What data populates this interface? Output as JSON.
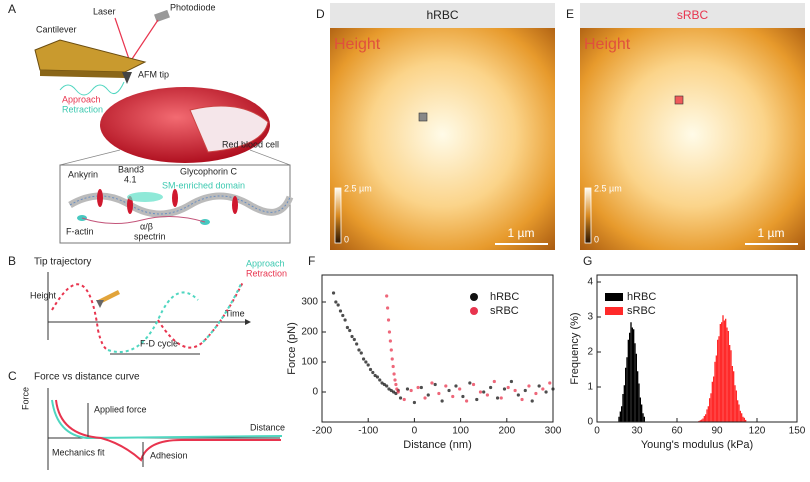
{
  "diagram": {
    "a": {
      "label": "A",
      "laser": "Laser",
      "photodiode": "Photodiode",
      "cantilever": "Cantilever",
      "tip": "AFM tip",
      "approach": "Approach",
      "retraction": "Retraction",
      "cell": "Red blood cell",
      "ankyrin": "Ankyrin",
      "band3": "Band3",
      "p41": "4.1",
      "glycophorin": "Glycophorin C",
      "sm_domain": "SM-enriched domain",
      "factin": "F-actin",
      "ab": "α/β",
      "spectrin": "spectrin"
    },
    "b": {
      "label": "B",
      "title": "Tip trajectory",
      "y": "Height",
      "x": "Time",
      "approach": "Approach",
      "retraction": "Retraction",
      "cycle": "F-D cycle"
    },
    "c": {
      "label": "C",
      "title": "Force vs distance curve",
      "y": "Force",
      "x": "Distance",
      "applied": "Applied force",
      "fit": "Mechanics fit",
      "adhesion": "Adhesion"
    }
  },
  "images": [
    {
      "label": "D",
      "title": "hRBC",
      "channel": "Height",
      "scale_max": "2.5 µm",
      "scale_min": "0",
      "scalebar": "1 µm"
    },
    {
      "label": "E",
      "title": "sRBC",
      "channel": "Height",
      "scale_max": "2.5 µm",
      "scale_min": "0",
      "scalebar": "1 µm"
    }
  ],
  "chart_data": [
    {
      "type": "scatter",
      "panel_label": "F",
      "xlabel": "Distance (nm)",
      "ylabel": "Force (pN)",
      "xlim": [
        -200,
        300
      ],
      "ylim": [
        -100,
        390
      ],
      "xticks": [
        -200,
        -100,
        0,
        100,
        200,
        300
      ],
      "yticks": [
        0,
        100,
        200,
        300
      ],
      "legend": "upper right",
      "series": [
        {
          "name": "hRBC",
          "color": "#111111",
          "x": [
            -175,
            -170,
            -165,
            -160,
            -155,
            -150,
            -145,
            -140,
            -135,
            -130,
            -125,
            -120,
            -115,
            -110,
            -105,
            -100,
            -95,
            -90,
            -85,
            -80,
            -75,
            -70,
            -65,
            -60,
            -55,
            -50,
            -45,
            -40,
            -35,
            -30,
            -15,
            0,
            15,
            30,
            45,
            60,
            75,
            90,
            105,
            120,
            135,
            150,
            165,
            180,
            195,
            210,
            225,
            240,
            255,
            270,
            285,
            300
          ],
          "values": [
            330,
            300,
            290,
            270,
            255,
            240,
            215,
            205,
            185,
            175,
            160,
            140,
            130,
            110,
            100,
            90,
            75,
            65,
            55,
            50,
            40,
            30,
            25,
            20,
            10,
            5,
            0,
            -5,
            5,
            -20,
            10,
            -35,
            15,
            -10,
            25,
            -30,
            5,
            20,
            -15,
            30,
            -25,
            0,
            15,
            -20,
            10,
            35,
            -10,
            5,
            -30,
            20,
            0,
            10
          ]
        },
        {
          "name": "sRBC",
          "color": "#e8344e",
          "x": [
            -60,
            -58,
            -56,
            -54,
            -52,
            -50,
            -48,
            -46,
            -44,
            -42,
            -40,
            -38,
            -35,
            -22,
            -7,
            8,
            23,
            38,
            53,
            68,
            83,
            98,
            113,
            128,
            143,
            158,
            173,
            188,
            203,
            218,
            233,
            248,
            263,
            278,
            293
          ],
          "values": [
            320,
            280,
            240,
            200,
            170,
            140,
            110,
            85,
            60,
            40,
            25,
            10,
            0,
            -25,
            5,
            15,
            -20,
            30,
            -5,
            20,
            -15,
            10,
            -30,
            25,
            0,
            -10,
            35,
            -20,
            15,
            5,
            -25,
            20,
            -5,
            10,
            30
          ]
        }
      ]
    },
    {
      "type": "histogram",
      "panel_label": "G",
      "xlabel": "Young's modulus (kPa)",
      "ylabel": "Frequency (%)",
      "xlim": [
        0,
        150
      ],
      "ylim": [
        0,
        4.2
      ],
      "xticks": [
        0,
        30,
        60,
        90,
        120,
        150
      ],
      "yticks": [
        0,
        1,
        2,
        3,
        4
      ],
      "legend": "upper left",
      "series": [
        {
          "name": "hRBC",
          "color": "#000000",
          "bins": [
            16,
            17,
            18,
            19,
            20,
            21,
            22,
            23,
            24,
            25,
            26,
            27,
            28,
            29,
            30,
            31,
            32,
            33,
            34,
            35,
            36
          ],
          "values": [
            0.15,
            0.3,
            0.45,
            0.8,
            1.05,
            1.55,
            1.85,
            2.35,
            2.55,
            2.85,
            2.7,
            2.65,
            2.25,
            1.95,
            1.45,
            1.1,
            0.7,
            0.5,
            0.25,
            0.15
          ]
        },
        {
          "name": "sRBC",
          "color": "#ff2a2a",
          "bins": [
            76,
            77,
            78,
            79,
            80,
            81,
            82,
            83,
            84,
            85,
            86,
            87,
            88,
            89,
            90,
            91,
            92,
            93,
            94,
            95,
            96,
            97,
            98,
            99,
            100,
            101,
            102,
            103,
            104,
            105,
            106,
            107,
            108,
            109,
            110,
            111,
            112
          ],
          "values": [
            0.03,
            0.05,
            0.07,
            0.1,
            0.17,
            0.22,
            0.36,
            0.45,
            0.68,
            0.82,
            1.15,
            1.3,
            1.72,
            1.9,
            2.35,
            2.45,
            2.8,
            2.85,
            3.05,
            2.9,
            2.95,
            2.7,
            2.6,
            2.2,
            2.05,
            1.6,
            1.45,
            1.05,
            0.9,
            0.62,
            0.5,
            0.32,
            0.25,
            0.15,
            0.12,
            0.06
          ]
        }
      ]
    }
  ]
}
